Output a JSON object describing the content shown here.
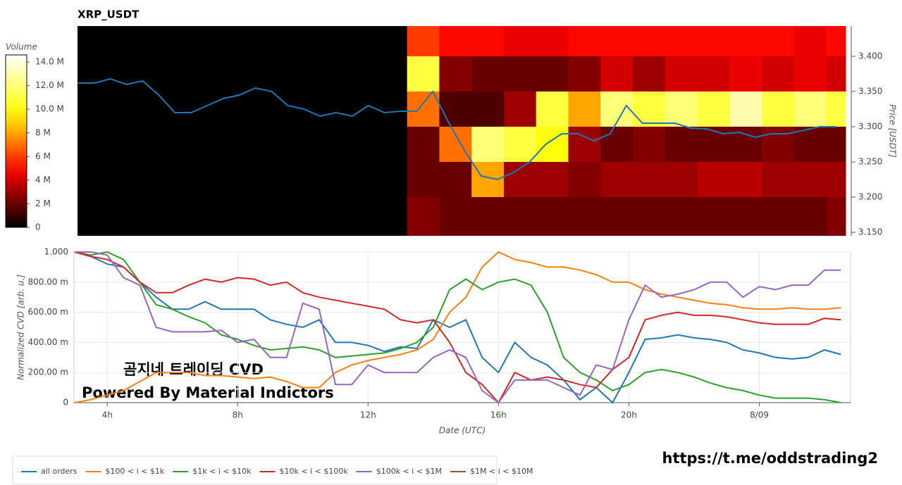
{
  "chart_data": [
    {
      "type": "heatmap",
      "title": "XRP_USDT",
      "y_label": "Price [USDT]",
      "xlim": [
        2.98,
        26.8
      ],
      "ylim": [
        3.145,
        3.443
      ],
      "yticks": [
        {
          "value": 3.15,
          "label": "3.150"
        },
        {
          "value": 3.2,
          "label": "3.200"
        },
        {
          "value": 3.25,
          "label": "3.250"
        },
        {
          "value": 3.3,
          "label": "3.300"
        },
        {
          "value": 3.35,
          "label": "3.350"
        },
        {
          "value": 3.4,
          "label": "3.400"
        }
      ],
      "x_edges": [
        13.2,
        14.2,
        15.2,
        16.2,
        17.2,
        18.2,
        19.2,
        20.2,
        21.2,
        22.2,
        23.2,
        24.2,
        25.2,
        26.2,
        26.8
      ],
      "y_edges": [
        3.145,
        3.2,
        3.25,
        3.3,
        3.35,
        3.4,
        3.443
      ],
      "values": [
        [
          2500000,
          2000000,
          2000000,
          2000000,
          2000000,
          2000000,
          2000000,
          2000000,
          2000000,
          2000000,
          2000000,
          2000000,
          2000000,
          2500000
        ],
        [
          2000000,
          2000000,
          8000000,
          3000000,
          3000000,
          2500000,
          3000000,
          3000000,
          3000000,
          3500000,
          3500000,
          3000000,
          3000000,
          3000000
        ],
        [
          2000000,
          7000000,
          12000000,
          11000000,
          10000000,
          3000000,
          2000000,
          2500000,
          2000000,
          2000000,
          2000000,
          2500000,
          2000000,
          2000000
        ],
        [
          7000000,
          1500000,
          1500000,
          3000000,
          11000000,
          8000000,
          12000000,
          11000000,
          12000000,
          11000000,
          13000000,
          11000000,
          12000000,
          11000000
        ],
        [
          11000000,
          2500000,
          2000000,
          2000000,
          2000000,
          2500000,
          4000000,
          3000000,
          4000000,
          4000000,
          4500000,
          4000000,
          4500000,
          4000000
        ],
        [
          6000000,
          5000000,
          5000000,
          4500000,
          4500000,
          5000000,
          5000000,
          5000000,
          5000000,
          5000000,
          5000000,
          5000000,
          4500000,
          5000000
        ]
      ],
      "colorbar": {
        "title": "Volume",
        "lim": [
          0,
          14600000
        ],
        "ticks": [
          0,
          {
            "value": 2000000,
            "label": "2 M"
          },
          {
            "value": 4000000,
            "label": "4 M"
          },
          {
            "value": 6000000,
            "label": "6 M"
          },
          {
            "value": 8000000,
            "label": "8 M"
          },
          {
            "value": 10000000,
            "label": "10.0 M"
          },
          {
            "value": 12000000,
            "label": "12.0 M"
          },
          {
            "value": 14000000,
            "label": "14.0 M"
          }
        ]
      },
      "x": [
        3,
        3.5,
        4,
        4.5,
        5,
        5.5,
        6,
        6.5,
        7,
        7.5,
        8,
        8.5,
        9,
        9.5,
        10,
        10.5,
        11,
        11.5,
        12,
        12.5,
        13,
        13.5,
        14,
        14.5,
        15,
        15.5,
        16,
        16.5,
        17,
        17.5,
        18,
        18.5,
        19,
        19.5,
        20,
        20.5,
        21,
        21.5,
        22,
        22.5,
        23,
        23.5,
        24,
        24.5,
        25,
        25.5,
        26,
        26.5
      ],
      "line": {
        "color": "#1f77b4",
        "values": [
          3.362,
          3.362,
          3.368,
          3.36,
          3.365,
          3.345,
          3.32,
          3.32,
          3.33,
          3.34,
          3.345,
          3.355,
          3.35,
          3.33,
          3.325,
          3.315,
          3.32,
          3.315,
          3.33,
          3.32,
          3.322,
          3.322,
          3.35,
          3.305,
          3.265,
          3.23,
          3.225,
          3.235,
          3.25,
          3.275,
          3.29,
          3.29,
          3.28,
          3.29,
          3.33,
          3.305,
          3.305,
          3.305,
          3.298,
          3.297,
          3.29,
          3.292,
          3.285,
          3.29,
          3.29,
          3.295,
          3.3,
          3.3
        ]
      }
    },
    {
      "type": "line",
      "x_label": "Date (UTC)",
      "y_label": "Normalized CVD [arb. u.]",
      "xlim": [
        2.98,
        26.8
      ],
      "ylim": [
        0,
        1
      ],
      "xticks": [
        {
          "value": 4,
          "label": "4h"
        },
        {
          "value": 8,
          "label": "8h"
        },
        {
          "value": 12,
          "label": "12h"
        },
        {
          "value": 16,
          "label": "16h"
        },
        {
          "value": 20,
          "label": "20h"
        },
        {
          "value": 24,
          "label": "8/09"
        }
      ],
      "yticks": [
        0,
        {
          "value": 0.2,
          "label": "200.00 m"
        },
        {
          "value": 0.4,
          "label": "400.00 m"
        },
        {
          "value": 0.6,
          "label": "600.00 m"
        },
        {
          "value": 0.8,
          "label": "800.00 m"
        },
        {
          "value": 1,
          "label": "1.000"
        }
      ],
      "grid": true,
      "annotations": [
        "곰지네 트레이딩 CVD",
        "Powered By Material Indictors"
      ],
      "x": [
        3,
        3.5,
        4,
        4.5,
        5,
        5.5,
        6,
        6.5,
        7,
        7.5,
        8,
        8.5,
        9,
        9.5,
        10,
        10.5,
        11,
        11.5,
        12,
        12.5,
        13,
        13.5,
        14,
        14.5,
        15,
        15.5,
        16,
        16.5,
        17,
        17.5,
        18,
        18.5,
        19,
        19.5,
        20,
        20.5,
        21,
        21.5,
        22,
        22.5,
        23,
        23.5,
        24,
        24.5,
        25,
        25.5,
        26,
        26.5
      ],
      "series": [
        {
          "name": "all orders",
          "color": "#1f77b4",
          "values": [
            1,
            0.97,
            0.92,
            0.9,
            0.8,
            0.7,
            0.62,
            0.62,
            0.67,
            0.62,
            0.62,
            0.62,
            0.55,
            0.52,
            0.5,
            0.55,
            0.4,
            0.4,
            0.38,
            0.34,
            0.37,
            0.36,
            0.55,
            0.5,
            0.55,
            0.3,
            0.2,
            0.4,
            0.3,
            0.25,
            0.15,
            0.02,
            0.1,
            0,
            0.2,
            0.42,
            0.43,
            0.45,
            0.43,
            0.42,
            0.4,
            0.35,
            0.33,
            0.3,
            0.29,
            0.3,
            0.35,
            0.32
          ]
        },
        {
          "name": "$100 < i < $1k",
          "color": "#ff7f0e",
          "values": [
            0,
            0.02,
            0.05,
            0.08,
            0.14,
            0.2,
            0.2,
            0.2,
            0.18,
            0.18,
            0.17,
            0.16,
            0.17,
            0.14,
            0.1,
            0.1,
            0.2,
            0.25,
            0.28,
            0.3,
            0.32,
            0.35,
            0.42,
            0.6,
            0.7,
            0.9,
            1,
            0.95,
            0.93,
            0.9,
            0.9,
            0.88,
            0.85,
            0.8,
            0.8,
            0.75,
            0.72,
            0.7,
            0.68,
            0.66,
            0.65,
            0.63,
            0.62,
            0.62,
            0.63,
            0.62,
            0.62,
            0.63
          ]
        },
        {
          "name": "$1k < i < $10k",
          "color": "#2ca02c",
          "values": [
            1,
            0.98,
            1,
            0.95,
            0.8,
            0.65,
            0.62,
            0.57,
            0.53,
            0.45,
            0.42,
            0.38,
            0.35,
            0.36,
            0.37,
            0.35,
            0.3,
            0.31,
            0.32,
            0.33,
            0.36,
            0.4,
            0.5,
            0.75,
            0.82,
            0.75,
            0.8,
            0.82,
            0.78,
            0.6,
            0.3,
            0.2,
            0.15,
            0.08,
            0.12,
            0.2,
            0.22,
            0.2,
            0.17,
            0.13,
            0.1,
            0.08,
            0.05,
            0.03,
            0.03,
            0.03,
            0.02,
            0
          ]
        },
        {
          "name": "$10k < i < $100k",
          "color": "#d62728",
          "values": [
            1,
            0.97,
            0.95,
            0.9,
            0.8,
            0.73,
            0.73,
            0.78,
            0.82,
            0.8,
            0.83,
            0.82,
            0.78,
            0.8,
            0.73,
            0.7,
            0.68,
            0.66,
            0.64,
            0.62,
            0.55,
            0.53,
            0.55,
            0.4,
            0.2,
            0.12,
            0,
            0.2,
            0.15,
            0.17,
            0.15,
            0.12,
            0.1,
            0.22,
            0.3,
            0.55,
            0.58,
            0.6,
            0.58,
            0.58,
            0.57,
            0.55,
            0.53,
            0.52,
            0.52,
            0.52,
            0.56,
            0.55
          ]
        },
        {
          "name": "$100k < i < $1M",
          "color": "#9467bd",
          "values": [
            1,
            1,
            0.98,
            0.83,
            0.78,
            0.5,
            0.47,
            0.47,
            0.47,
            0.48,
            0.4,
            0.42,
            0.3,
            0.3,
            0.66,
            0.62,
            0.12,
            0.12,
            0.25,
            0.2,
            0.2,
            0.2,
            0.3,
            0.35,
            0.3,
            0.08,
            0,
            0.15,
            0.15,
            0.15,
            0.1,
            0.05,
            0.25,
            0.22,
            0.55,
            0.78,
            0.7,
            0.72,
            0.75,
            0.8,
            0.8,
            0.7,
            0.77,
            0.75,
            0.78,
            0.78,
            0.88,
            0.88
          ]
        },
        {
          "name": "$1M < i < $10M",
          "color": "#8c564b",
          "values": [
            null,
            null,
            null,
            null,
            null,
            null,
            null,
            null,
            null,
            null,
            null,
            null,
            null,
            null,
            null,
            null,
            null,
            null,
            null,
            null,
            null,
            null,
            null,
            null,
            null,
            null,
            null,
            null,
            null,
            null,
            null,
            null,
            null,
            null,
            null,
            null,
            null,
            null,
            null,
            null,
            null,
            null,
            null,
            null,
            null,
            null,
            null,
            null
          ]
        }
      ]
    }
  ],
  "footer_link": "https://t.me/oddstrading2"
}
